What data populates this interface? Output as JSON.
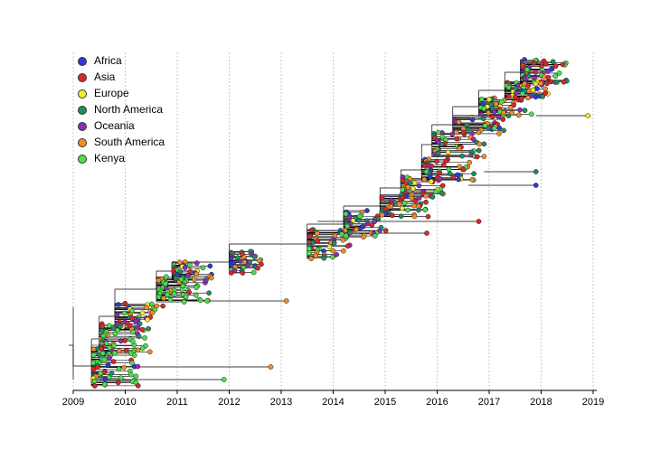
{
  "legend": [
    {
      "label": "Africa",
      "color": "#2b3bd6"
    },
    {
      "label": "Asia",
      "color": "#d9262b"
    },
    {
      "label": "Europe",
      "color": "#f2ec2b"
    },
    {
      "label": "North America",
      "color": "#1f8c64"
    },
    {
      "label": "Oceania",
      "color": "#8a2fb8"
    },
    {
      "label": "South America",
      "color": "#f28c28"
    },
    {
      "label": "Kenya",
      "color": "#4ce04c"
    }
  ],
  "axis": {
    "ticks": [
      "2009",
      "2010",
      "2011",
      "2012",
      "2013",
      "2014",
      "2015",
      "2016",
      "2017",
      "2018",
      "2019"
    ],
    "range": [
      2009,
      2019
    ],
    "gridlines": "dotted vertical at each year"
  },
  "tree": {
    "description_type": "time-scaled phylogenetic tree",
    "root_year": 2009.0,
    "tips_min_year": 2009.3,
    "tips_max_year": 2018.9
  }
}
